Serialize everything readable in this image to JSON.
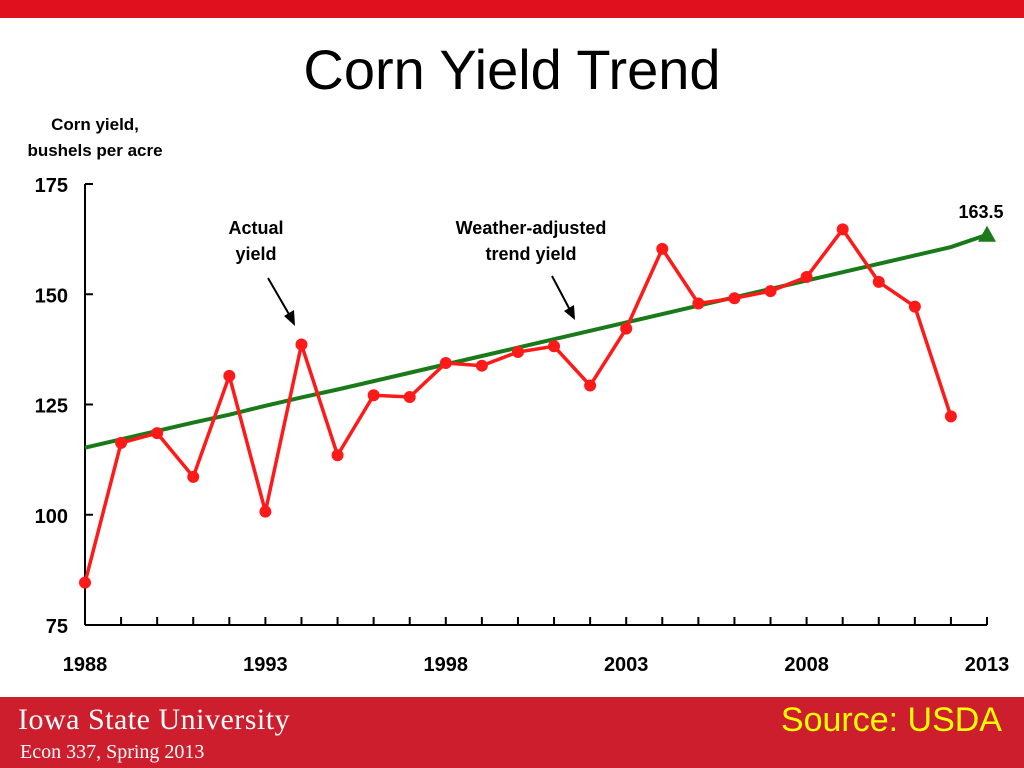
{
  "slide": {
    "title": "Corn Yield Trend",
    "university": "Iowa State University",
    "course": "Econ 337, Spring 2013",
    "source": "Source: USDA"
  },
  "colors": {
    "top_bar": "#e0101e",
    "footer": "#cc1e2c",
    "actual": "#ff1a1a",
    "trend": "#1a7a1a",
    "source_text": "#ffff00"
  },
  "chart_data": {
    "type": "line",
    "ylabel_line1": "Corn yield,",
    "ylabel_line2": "bushels per acre",
    "ylim": [
      75,
      175
    ],
    "xlim": [
      1988,
      2013
    ],
    "yticks": [
      75,
      100,
      125,
      150,
      175
    ],
    "xticks": [
      1988,
      1993,
      1998,
      2003,
      2008,
      2013
    ],
    "grid": false,
    "annotations": {
      "actual_line1": "Actual",
      "actual_line2": "yield",
      "trend_line1": "Weather-adjusted",
      "trend_line2": "trend yield",
      "end_label": "163.5"
    },
    "series": [
      {
        "name": "Actual yield",
        "x": [
          1988,
          1989,
          1990,
          1991,
          1992,
          1993,
          1994,
          1995,
          1996,
          1997,
          1998,
          1999,
          2000,
          2001,
          2002,
          2003,
          2004,
          2005,
          2006,
          2007,
          2008,
          2009,
          2010,
          2011,
          2012
        ],
        "values": [
          84.6,
          116.3,
          118.5,
          108.6,
          131.5,
          100.7,
          138.6,
          113.5,
          127.1,
          126.7,
          134.4,
          133.8,
          136.9,
          138.2,
          129.3,
          142.2,
          160.3,
          147.9,
          149.1,
          150.7,
          153.9,
          164.7,
          152.8,
          147.2,
          122.3
        ]
      },
      {
        "name": "Weather-adjusted trend yield",
        "x": [
          1988,
          1989,
          1990,
          1991,
          1992,
          1993,
          1994,
          1995,
          1996,
          1997,
          1998,
          1999,
          2000,
          2001,
          2002,
          2003,
          2004,
          2005,
          2006,
          2007,
          2008,
          2009,
          2010,
          2011,
          2012,
          2013
        ],
        "values": [
          115.2,
          117.1,
          119.0,
          120.9,
          122.7,
          124.7,
          126.6,
          128.4,
          130.3,
          132.2,
          134.1,
          136.0,
          137.9,
          139.8,
          141.7,
          143.6,
          145.5,
          147.4,
          149.3,
          151.2,
          153.1,
          155.0,
          156.9,
          158.8,
          160.7,
          163.5
        ]
      }
    ]
  }
}
